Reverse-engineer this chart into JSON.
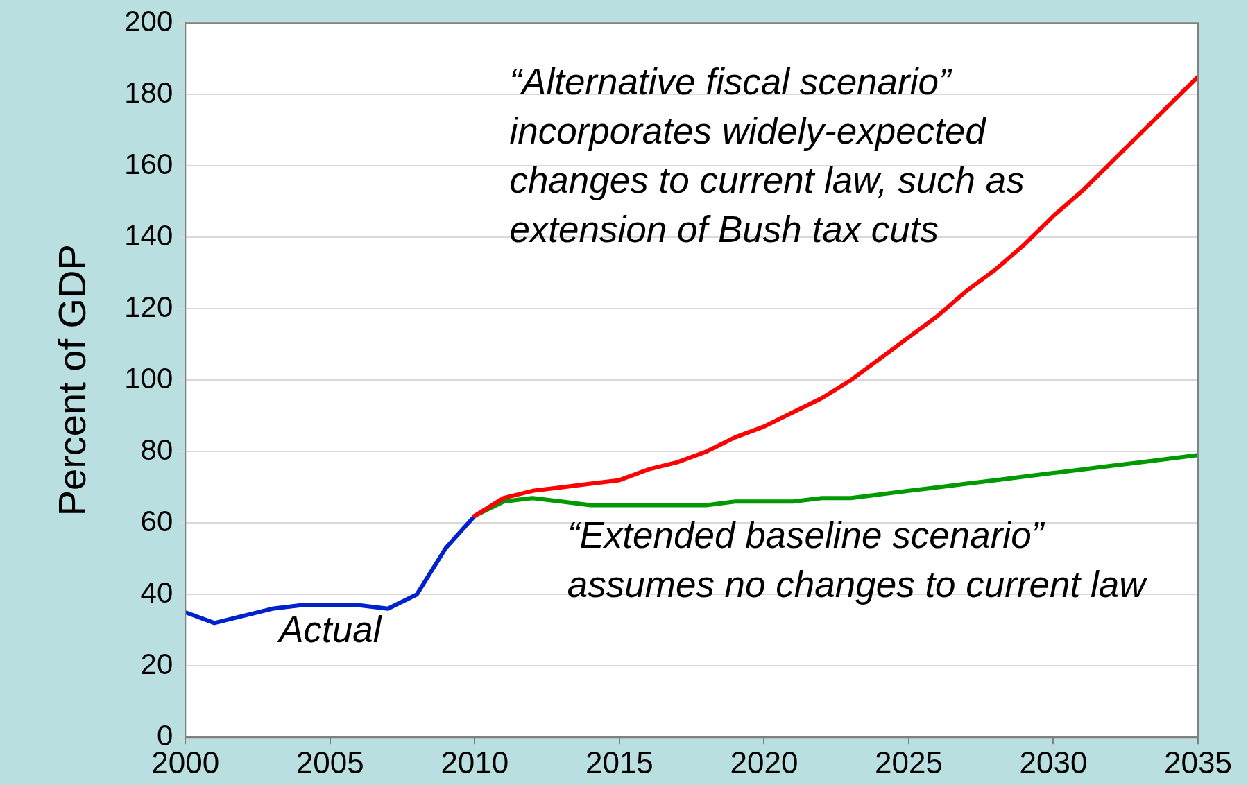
{
  "chart_data": {
    "type": "line",
    "ylabel": "Percent of GDP",
    "xlim": [
      2000,
      2035
    ],
    "xticks": [
      2000,
      2005,
      2010,
      2015,
      2020,
      2025,
      2030,
      2035
    ],
    "ylim": [
      0,
      200
    ],
    "yticks": [
      0,
      20,
      40,
      60,
      80,
      100,
      120,
      140,
      160,
      180,
      200
    ],
    "grid": "y",
    "legend": false,
    "marker": "none",
    "line_style": "solid",
    "annotations": [
      {
        "text": "Actual",
        "x": 2005,
        "y": 37
      },
      "“Alternative fiscal scenario” incorporates widely-expected changes to current law, such as extension of Bush tax cuts",
      "“Extended baseline scenario” assumes no changes to current law"
    ],
    "series": [
      {
        "color": "#ff0000",
        "x": [
          2010,
          2011,
          2012,
          2013,
          2014,
          2015,
          2016,
          2017,
          2018,
          2019,
          2020,
          2021,
          2022,
          2023,
          2024,
          2025,
          2026,
          2027,
          2028,
          2029,
          2030,
          2031,
          2032,
          2033,
          2034,
          2035
        ],
        "values": [
          62,
          67,
          69,
          70,
          71,
          72,
          75,
          77,
          80,
          84,
          87,
          91,
          95,
          100,
          106,
          112,
          118,
          125,
          131,
          138,
          146,
          153,
          161,
          169,
          177,
          185
        ]
      },
      {
        "color": "#009900",
        "x": [
          2010,
          2011,
          2012,
          2013,
          2014,
          2015,
          2016,
          2017,
          2018,
          2019,
          2020,
          2021,
          2022,
          2023,
          2024,
          2025,
          2026,
          2027,
          2028,
          2029,
          2030,
          2031,
          2032,
          2033,
          2034,
          2035
        ],
        "values": [
          62,
          66,
          67,
          66,
          65,
          65,
          65,
          65,
          65,
          66,
          66,
          66,
          67,
          67,
          68,
          69,
          70,
          71,
          72,
          73,
          74,
          75,
          76,
          77,
          78,
          79
        ]
      },
      {
        "color": "#0022cc",
        "x": [
          2000,
          2001,
          2002,
          2003,
          2004,
          2005,
          2006,
          2007,
          2008,
          2009,
          2010
        ],
        "values": [
          35,
          32,
          34,
          36,
          37,
          37,
          37,
          36,
          40,
          53,
          62
        ]
      }
    ]
  }
}
